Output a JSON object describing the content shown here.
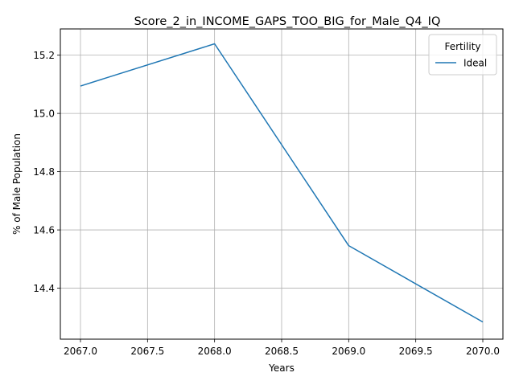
{
  "chart_data": {
    "type": "line",
    "title": "Score_2_in_INCOME_GAPS_TOO_BIG_for_Male_Q4_IQ",
    "xlabel": "Years",
    "ylabel": "% of Male Population",
    "xlim": [
      2066.85,
      2070.15
    ],
    "ylim": [
      14.225,
      15.29
    ],
    "x_ticks": [
      "2067.0",
      "2067.5",
      "2068.0",
      "2068.5",
      "2069.0",
      "2069.5",
      "2070.0"
    ],
    "y_ticks": [
      "14.4",
      "14.6",
      "14.8",
      "15.0",
      "15.2"
    ],
    "x_tick_values": [
      2067.0,
      2067.5,
      2068.0,
      2068.5,
      2069.0,
      2069.5,
      2070.0
    ],
    "y_tick_values": [
      14.4,
      14.6,
      14.8,
      15.0,
      15.2
    ],
    "grid": true,
    "legend": {
      "title": "Fertility",
      "placement": "top-right"
    },
    "x": [
      2067,
      2068,
      2069,
      2070
    ],
    "series": [
      {
        "name": "Ideal",
        "color": "#1f77b4",
        "values": [
          15.094,
          15.239,
          14.546,
          14.284
        ]
      }
    ]
  }
}
